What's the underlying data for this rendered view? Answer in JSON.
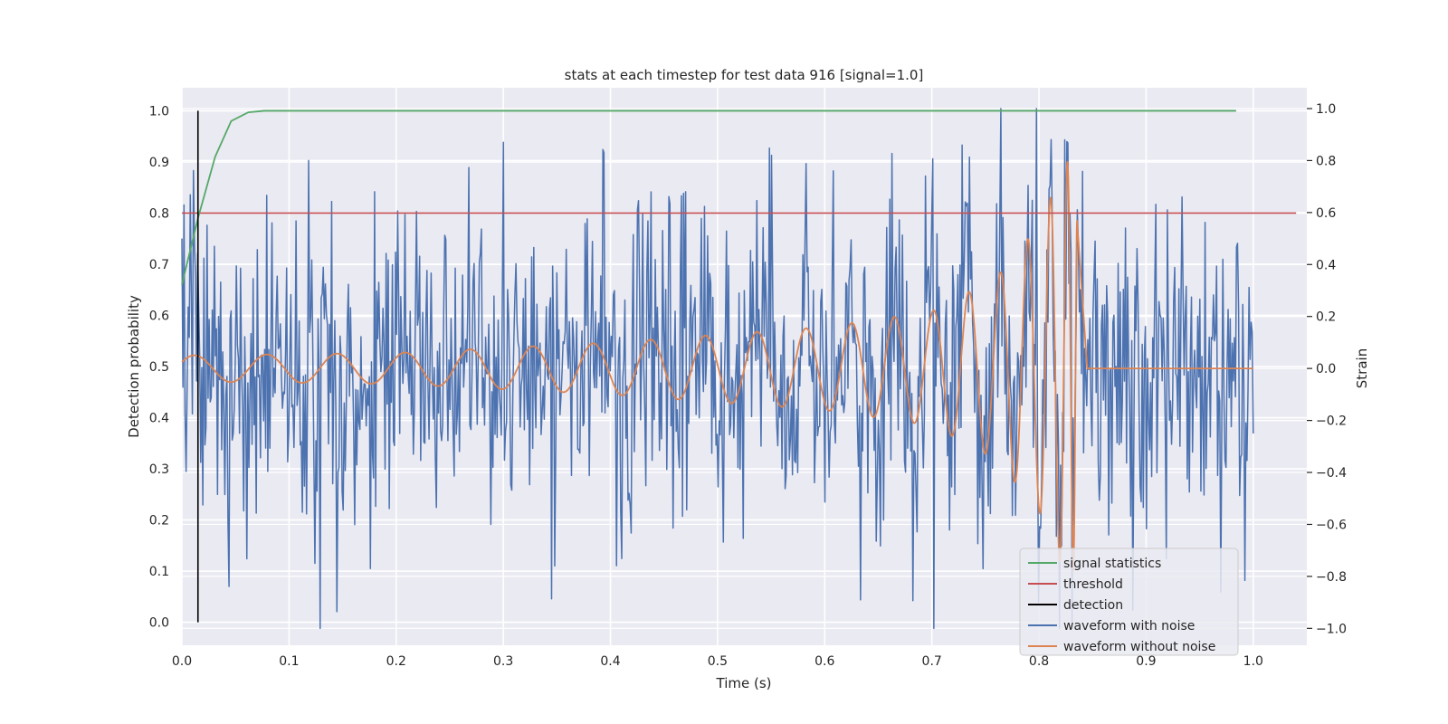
{
  "chart_data": {
    "type": "line",
    "title": "stats at each timestep for test data 916 [signal=1.0]",
    "xlabel": "Time (s)",
    "ylabel": "Detection probability",
    "y2label": "Strain",
    "xlim": [
      0.0,
      1.05
    ],
    "ylim": [
      -0.045,
      1.045
    ],
    "y2lim": [
      -1.065,
      1.08
    ],
    "grid": true,
    "background": "#eaeaf2",
    "legend_position": "lower-right",
    "x_ticks": [
      "0.0",
      "0.1",
      "0.2",
      "0.3",
      "0.4",
      "0.5",
      "0.6",
      "0.7",
      "0.8",
      "0.9",
      "1.0"
    ],
    "y_ticks": [
      "0.0",
      "0.1",
      "0.2",
      "0.3",
      "0.4",
      "0.5",
      "0.6",
      "0.7",
      "0.8",
      "0.9",
      "1.0"
    ],
    "y2_ticks": [
      "−1.0",
      "−0.8",
      "−0.6",
      "−0.4",
      "−0.2",
      "0.0",
      "0.2",
      "0.4",
      "0.6",
      "0.8",
      "1.0"
    ],
    "legend": [
      {
        "label": "signal statistics",
        "color": "#55a868"
      },
      {
        "label": "threshold",
        "color": "#c44e52"
      },
      {
        "label": "detection",
        "color": "#000000"
      },
      {
        "label": "waveform with noise",
        "color": "#4c72b0"
      },
      {
        "label": "waveform without noise",
        "color": "#dd8452"
      }
    ],
    "signal_statistics": {
      "axis": "left",
      "x": [
        0.0,
        0.015,
        0.031,
        0.046,
        0.062,
        0.077,
        0.2,
        0.4,
        0.6,
        0.8,
        0.984
      ],
      "y": [
        0.66,
        0.79,
        0.91,
        0.98,
        0.997,
        1.0,
        1.0,
        1.0,
        1.0,
        1.0,
        1.0
      ]
    },
    "threshold": {
      "axis": "left",
      "y": 0.8,
      "x": [
        0.0,
        1.04
      ]
    },
    "detection": {
      "axis": "left",
      "x": 0.015,
      "y": [
        0.0,
        1.0
      ]
    },
    "waveform_with_noise": {
      "axis": "right",
      "x_range": [
        0.0,
        1.0
      ],
      "points": 1024,
      "approx_range": [
        -1.0,
        1.0
      ],
      "peaks": [
        {
          "x": 0.0,
          "y": 0.5
        },
        {
          "x": 0.03,
          "y": 0.47
        },
        {
          "x": 0.118,
          "y": 0.8
        },
        {
          "x": 0.124,
          "y": -0.75
        },
        {
          "x": 0.18,
          "y": 0.68
        },
        {
          "x": 0.3,
          "y": 0.87
        },
        {
          "x": 0.348,
          "y": -0.76
        },
        {
          "x": 0.394,
          "y": 0.83
        },
        {
          "x": 0.47,
          "y": 0.68
        },
        {
          "x": 0.55,
          "y": 0.82
        },
        {
          "x": 0.608,
          "y": 0.76
        },
        {
          "x": 0.702,
          "y": -1.0
        },
        {
          "x": 0.798,
          "y": 1.0
        },
        {
          "x": 0.8,
          "y": -0.9
        },
        {
          "x": 0.824,
          "y": 0.88
        },
        {
          "x": 0.934,
          "y": 0.66
        },
        {
          "x": 0.97,
          "y": -0.86
        },
        {
          "x": 1.0,
          "y": -0.25
        }
      ]
    },
    "waveform_without_noise": {
      "axis": "right",
      "x_range": [
        0.0,
        1.0
      ],
      "merger_time": 0.832,
      "amplitude_points": [
        {
          "x": 0.0,
          "y": 0.05
        },
        {
          "x": 0.2,
          "y": 0.06
        },
        {
          "x": 0.4,
          "y": 0.1
        },
        {
          "x": 0.6,
          "y": 0.16
        },
        {
          "x": 0.7,
          "y": 0.22
        },
        {
          "x": 0.76,
          "y": 0.35
        },
        {
          "x": 0.8,
          "y": 0.55
        },
        {
          "x": 0.825,
          "y": 0.8
        },
        {
          "x": 0.832,
          "y": 0.78
        },
        {
          "x": 0.845,
          "y": 0.0
        },
        {
          "x": 1.0,
          "y": 0.0
        }
      ]
    }
  }
}
